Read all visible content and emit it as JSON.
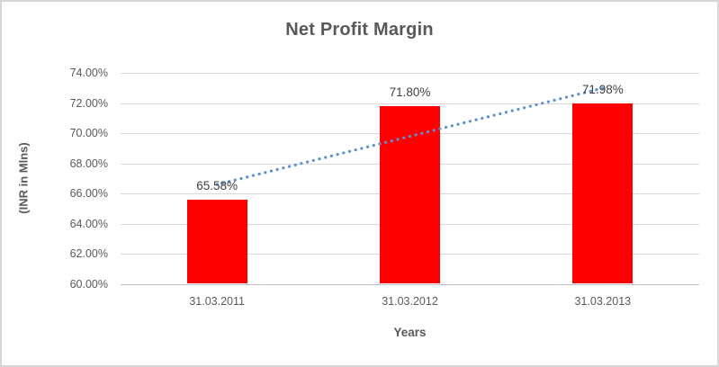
{
  "chart_data": {
    "type": "bar",
    "title": "Net Profit Margin",
    "xlabel": "Years",
    "ylabel": "(INR in Mlns)",
    "categories": [
      "31.03.2011",
      "31.03.2012",
      "31.03.2013"
    ],
    "values": [
      65.58,
      71.8,
      71.98
    ],
    "value_labels": [
      "65.58%",
      "71.80%",
      "71.98%"
    ],
    "ylim": [
      60,
      74
    ],
    "ytick_step": 2,
    "ytick_labels": [
      "60.00%",
      "62.00%",
      "64.00%",
      "66.00%",
      "68.00%",
      "70.00%",
      "72.00%",
      "74.00%"
    ],
    "grid": true,
    "legend": "none",
    "bar_color": "#ff0000",
    "trendline": {
      "type": "linear",
      "style": "dotted",
      "color": "#5b8fd0"
    }
  }
}
